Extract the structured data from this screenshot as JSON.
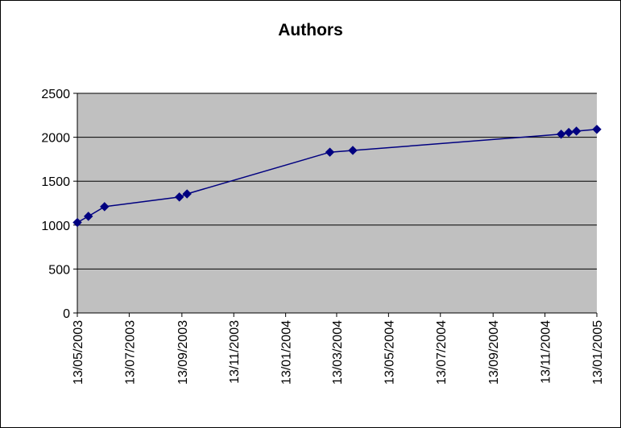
{
  "chart_data": {
    "type": "line",
    "title": "Authors",
    "xlabel": "",
    "ylabel": "",
    "ylim": [
      0,
      2500
    ],
    "yticks": [
      0,
      500,
      1000,
      1500,
      2000,
      2500
    ],
    "xlim": [
      "2003-05-13",
      "2005-01-13"
    ],
    "xticks": [
      "13/05/2003",
      "13/07/2003",
      "13/09/2003",
      "13/11/2003",
      "13/01/2004",
      "13/03/2004",
      "13/05/2004",
      "13/07/2004",
      "13/09/2004",
      "13/11/2004",
      "13/01/2005"
    ],
    "grid": true,
    "legend": "none",
    "series": [
      {
        "x": [
          "2003-05-13",
          "2003-05-26",
          "2003-06-14",
          "2003-09-10",
          "2003-09-19",
          "2004-03-05",
          "2004-04-01",
          "2004-12-02",
          "2004-12-11",
          "2004-12-20",
          "2005-01-13"
        ],
        "y": [
          1030,
          1100,
          1210,
          1320,
          1355,
          1830,
          1850,
          2035,
          2055,
          2070,
          2090
        ]
      }
    ],
    "colors": {
      "plot_background": "#c0c0c0",
      "series_line": "#000080",
      "gridline": "#000000"
    }
  }
}
